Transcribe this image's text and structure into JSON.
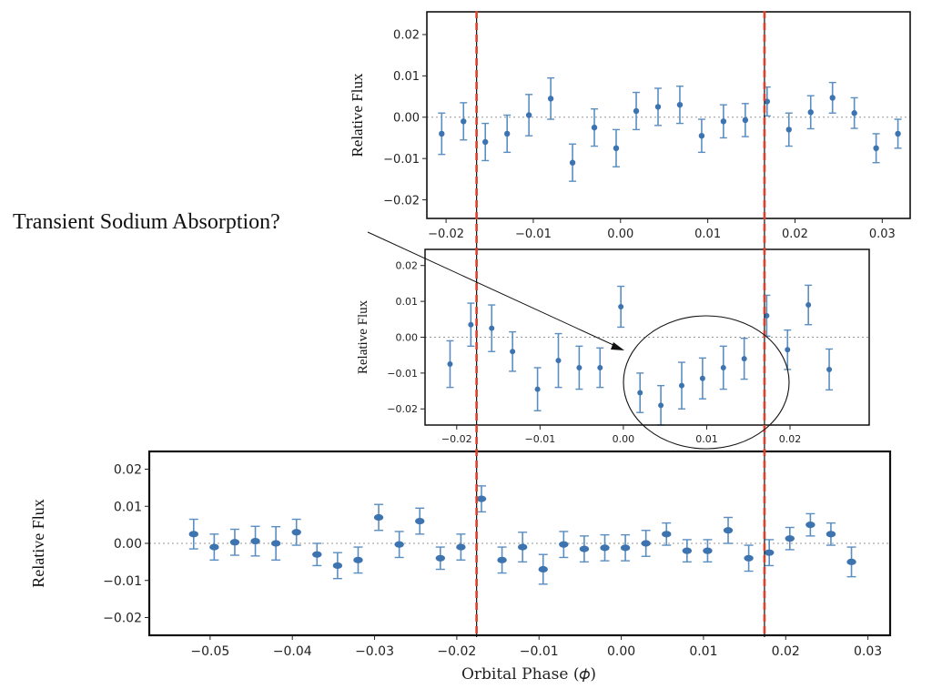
{
  "annotation": {
    "text": "Transient Sodium Absorption?"
  },
  "chart_data": [
    {
      "type": "scatter",
      "error_bars": true,
      "ylabel": "Relative Flux",
      "xlim": [
        -0.0222,
        0.0332
      ],
      "ylim": [
        -0.0245,
        0.0255
      ],
      "xticks": [
        -0.02,
        -0.01,
        0.0,
        0.01,
        0.02,
        0.03
      ],
      "yticks": [
        -0.02,
        -0.01,
        0.0,
        0.01,
        0.02
      ],
      "reference_line": 0,
      "vertical_lines": [
        -0.0165,
        0.0165
      ],
      "series": [
        {
          "x": [
            -0.0205,
            -0.018,
            -0.0155,
            -0.013,
            -0.0105,
            -0.008,
            -0.0055,
            -0.003,
            -0.0005,
            0.0018,
            0.0043,
            0.0068,
            0.0093,
            0.0118,
            0.0143,
            0.0168,
            0.0193,
            0.0218,
            0.0243,
            0.0268,
            0.0293,
            0.0318
          ],
          "y": [
            -0.004,
            -0.001,
            -0.006,
            -0.004,
            0.0005,
            0.0045,
            -0.011,
            -0.0025,
            -0.0075,
            0.0015,
            0.0025,
            0.003,
            -0.0045,
            -0.001,
            -0.0007,
            0.0038,
            -0.003,
            0.0012,
            0.0047,
            0.001,
            -0.0075,
            -0.004
          ],
          "err": [
            0.005,
            0.0045,
            0.0045,
            0.0045,
            0.005,
            0.005,
            0.0045,
            0.0045,
            0.0045,
            0.0045,
            0.0045,
            0.0045,
            0.004,
            0.004,
            0.004,
            0.0035,
            0.004,
            0.004,
            0.0037,
            0.0037,
            0.0035,
            0.0035
          ]
        }
      ]
    },
    {
      "type": "scatter",
      "error_bars": true,
      "ylabel": "Relative Flux",
      "xlim": [
        -0.0238,
        0.0295
      ],
      "ylim": [
        -0.0245,
        0.0245
      ],
      "xticks": [
        -0.02,
        -0.01,
        0.0,
        0.01,
        0.02
      ],
      "yticks": [
        -0.02,
        -0.01,
        0.0,
        0.01,
        0.02
      ],
      "reference_line": 0,
      "vertical_lines": [
        -0.0165,
        0.0165
      ],
      "series": [
        {
          "x": [
            -0.0208,
            -0.0183,
            -0.0158,
            -0.0133,
            -0.0103,
            -0.0078,
            -0.0053,
            -0.0028,
            -0.0003,
            0.002,
            0.0045,
            0.007,
            0.0095,
            0.012,
            0.0145,
            0.0172,
            0.0197,
            0.0222,
            0.0247
          ],
          "y": [
            -0.0075,
            0.0035,
            0.0025,
            -0.004,
            -0.0145,
            -0.0065,
            -0.0085,
            -0.0085,
            0.0085,
            -0.0155,
            -0.019,
            -0.0135,
            -0.0115,
            -0.0085,
            -0.006,
            0.006,
            -0.0035,
            0.009,
            -0.009
          ],
          "err": [
            0.0065,
            0.006,
            0.0065,
            0.0055,
            0.006,
            0.0075,
            0.006,
            0.0055,
            0.0057,
            0.0055,
            0.0055,
            0.0065,
            0.0057,
            0.006,
            0.0057,
            0.0057,
            0.0055,
            0.0055,
            0.0057
          ]
        }
      ]
    },
    {
      "type": "scatter",
      "error_bars": true,
      "xlabel": "Orbital Phase (𝜙)",
      "ylabel": "Relative Flux",
      "xlim": [
        -0.0574,
        0.0327
      ],
      "ylim": [
        -0.0248,
        0.0248
      ],
      "xticks": [
        -0.05,
        -0.04,
        -0.03,
        -0.02,
        -0.01,
        0.0,
        0.01,
        0.02,
        0.03
      ],
      "yticks": [
        -0.02,
        -0.01,
        0.0,
        0.01,
        0.02
      ],
      "reference_line": 0,
      "vertical_lines": [
        -0.0165,
        0.0165
      ],
      "series": [
        {
          "x": [
            -0.052,
            -0.0495,
            -0.047,
            -0.0445,
            -0.042,
            -0.0395,
            -0.037,
            -0.0345,
            -0.032,
            -0.0295,
            -0.027,
            -0.0245,
            -0.022,
            -0.0195,
            -0.017,
            -0.0145,
            -0.012,
            -0.0095,
            -0.007,
            -0.0045,
            -0.002,
            0.0005,
            0.003,
            0.0055,
            0.008,
            0.0105,
            0.013,
            0.0155,
            0.018,
            0.0205,
            0.023,
            0.0255,
            0.028
          ],
          "y": [
            0.0025,
            -0.001,
            0.0003,
            0.0006,
            0.0,
            0.003,
            -0.003,
            -0.006,
            -0.0045,
            0.007,
            -0.0003,
            0.006,
            -0.004,
            -0.001,
            0.012,
            -0.0045,
            -0.001,
            -0.007,
            -0.0003,
            -0.0015,
            -0.0012,
            -0.0012,
            0.0,
            0.0025,
            -0.002,
            -0.002,
            0.0035,
            -0.004,
            -0.0025,
            0.0013,
            0.005,
            0.0025,
            -0.005
          ],
          "err": [
            0.004,
            0.0035,
            0.0035,
            0.004,
            0.0045,
            0.0035,
            0.003,
            0.0035,
            0.0035,
            0.0035,
            0.0035,
            0.0035,
            0.003,
            0.0035,
            0.0035,
            0.0035,
            0.004,
            0.004,
            0.0035,
            0.0035,
            0.0035,
            0.0035,
            0.0035,
            0.003,
            0.003,
            0.003,
            0.0035,
            0.0035,
            0.0035,
            0.003,
            0.003,
            0.003,
            0.004
          ]
        }
      ]
    }
  ]
}
